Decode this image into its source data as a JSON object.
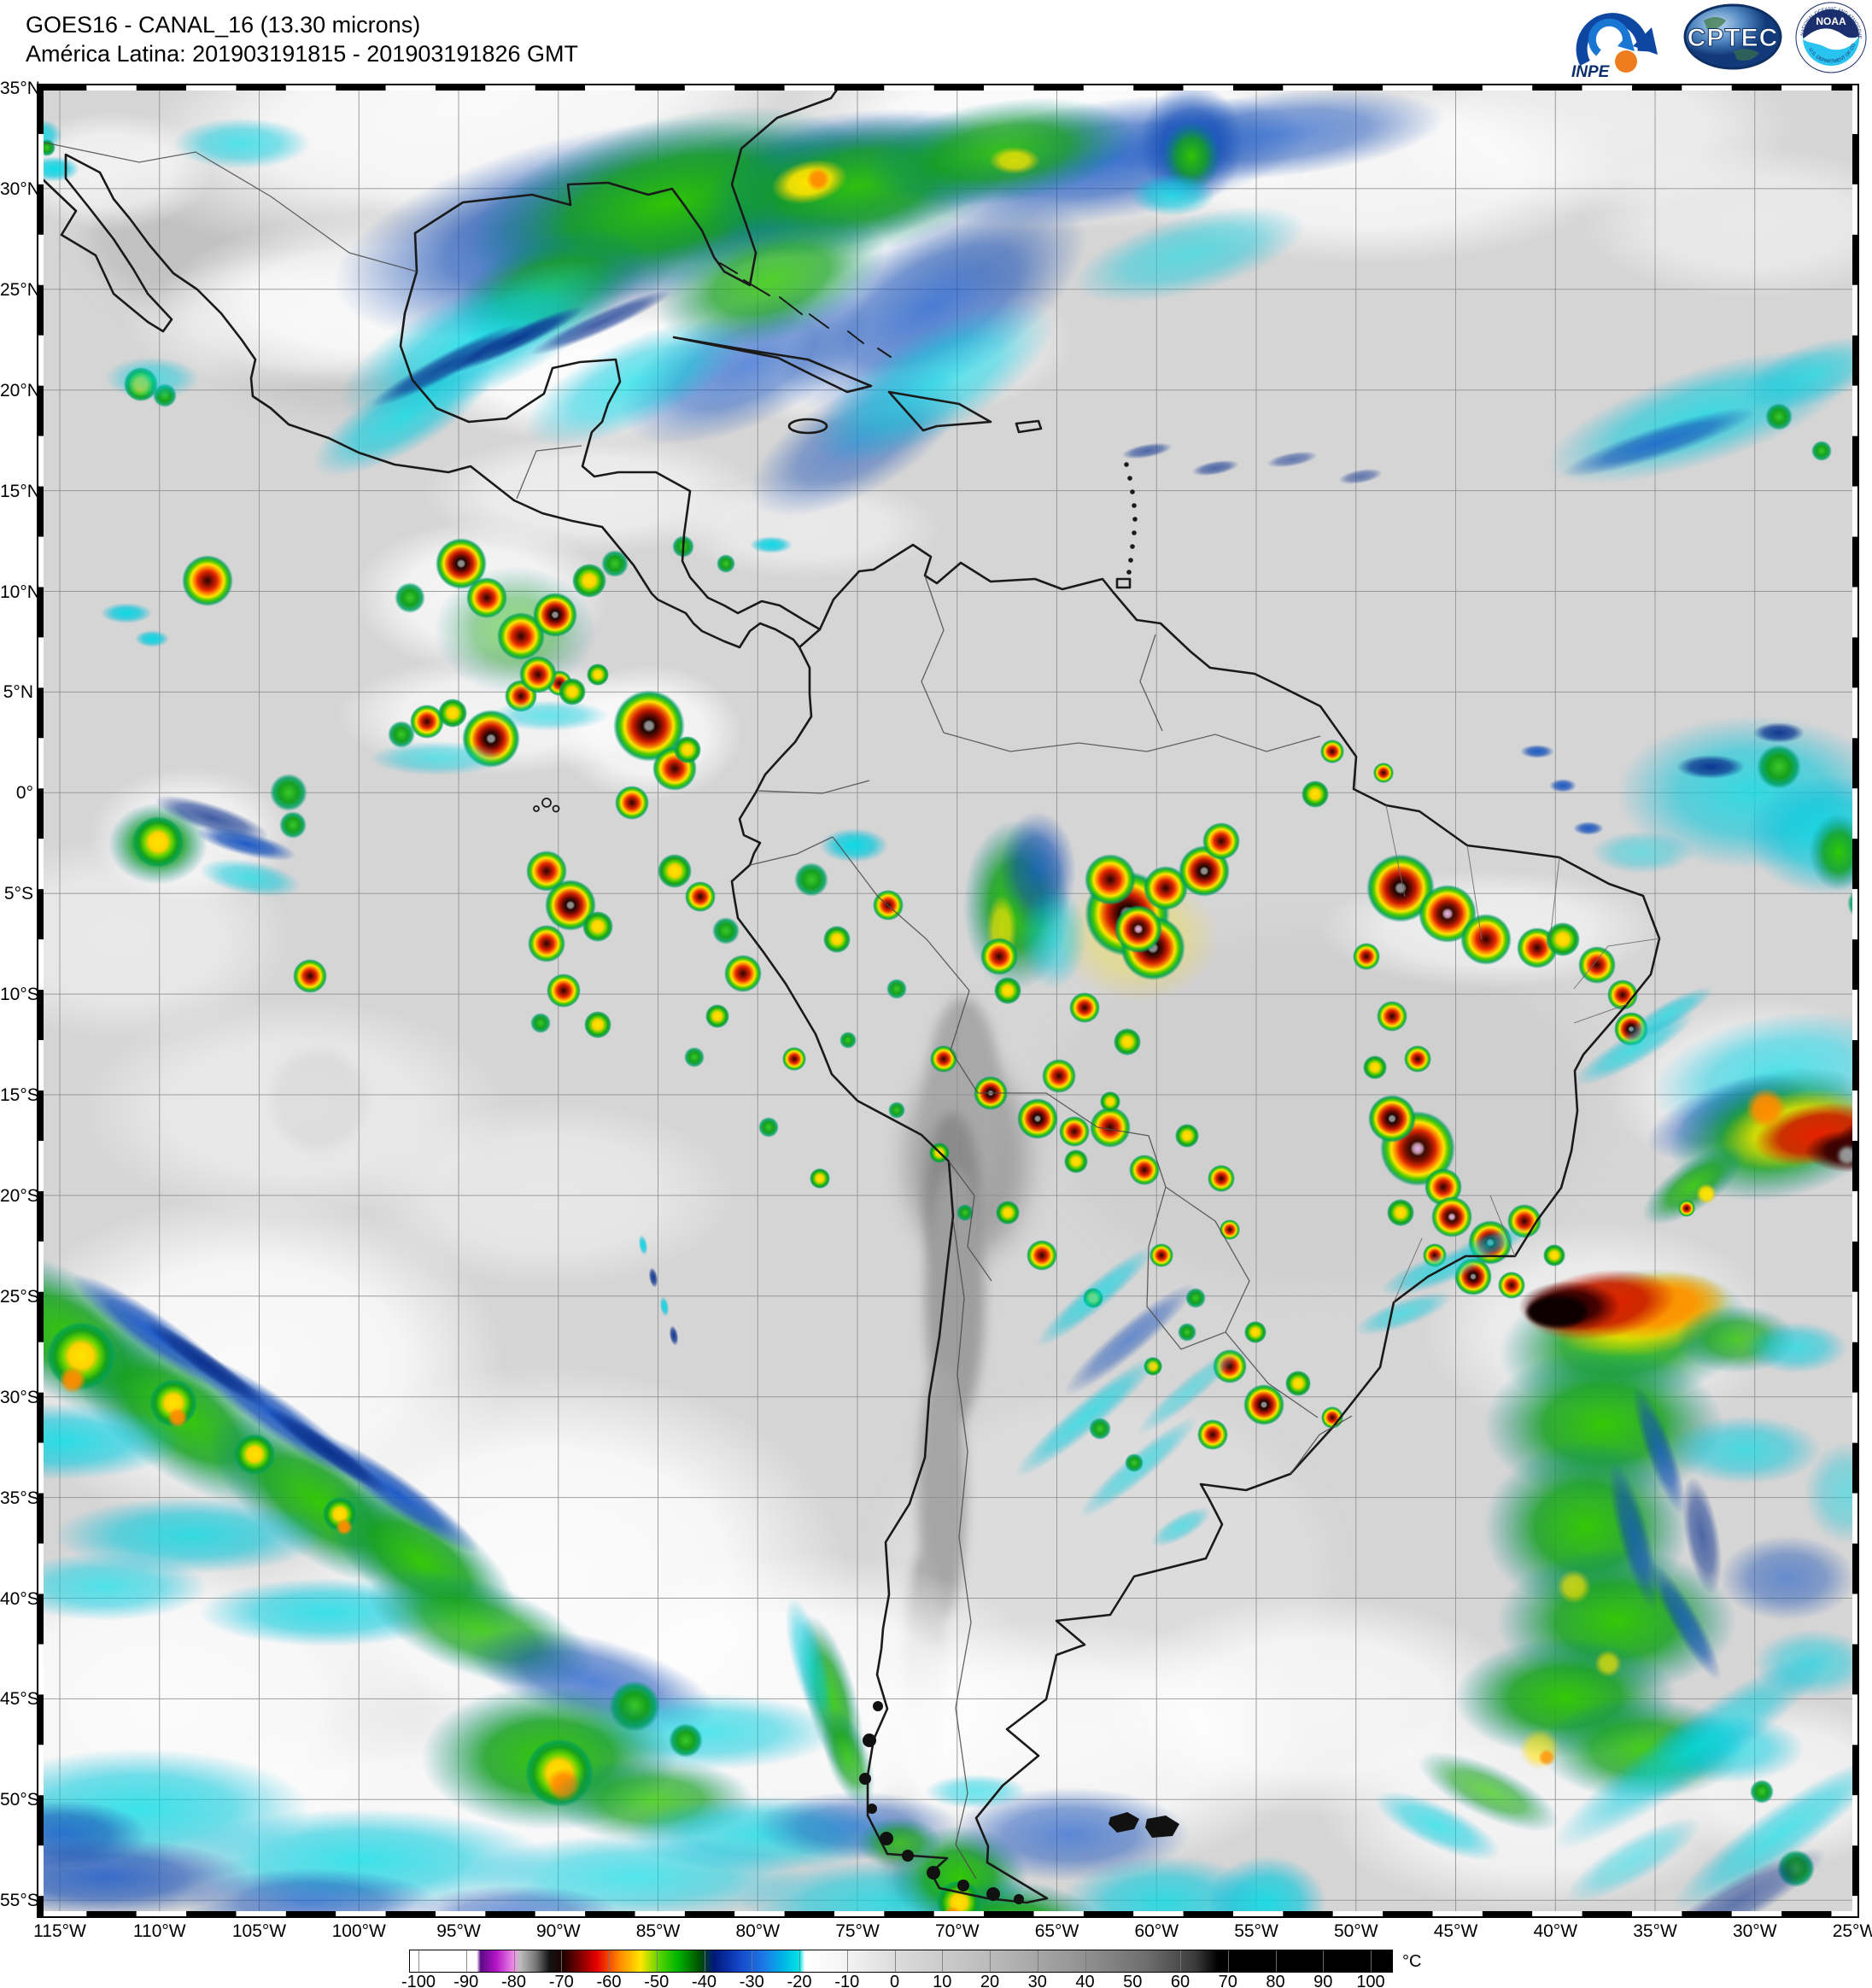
{
  "header": {
    "line1": "GOES16 - CANAL_16 (13.30 microns)",
    "line2": "América Latina: 201903191815 - 201903191826 GMT"
  },
  "logos": {
    "inpe": "INPE",
    "cptec": "CPTEC",
    "noaa": "NOAA",
    "noaa_ring_top": "NATIONAL OCEANIC AND ATMOSPHERIC ADMINISTRATION",
    "noaa_ring_bottom": "U.S. DEPARTMENT OF COMMERCE"
  },
  "map": {
    "lat_labels": [
      "35°N",
      "30°N",
      "25°N",
      "20°N",
      "15°N",
      "10°N",
      "5°N",
      "0°",
      "5°S",
      "10°S",
      "15°S",
      "20°S",
      "25°S",
      "30°S",
      "35°S",
      "40°S",
      "45°S",
      "50°S",
      "55°S"
    ],
    "lon_labels": [
      "115°W",
      "110°W",
      "105°W",
      "100°W",
      "95°W",
      "90°W",
      "85°W",
      "80°W",
      "75°W",
      "70°W",
      "65°W",
      "60°W",
      "55°W",
      "50°W",
      "45°W",
      "40°W",
      "35°W",
      "30°W",
      "25°W"
    ]
  },
  "colorbar": {
    "unit": "°C",
    "ticks": [
      "-100",
      "-90",
      "-80",
      "-70",
      "-60",
      "-50",
      "-40",
      "-30",
      "-20",
      "-10",
      "0",
      "10",
      "20",
      "30",
      "40",
      "50",
      "60",
      "70",
      "80",
      "90",
      "100"
    ],
    "stops": [
      {
        "p": 0,
        "c": "#ffffff"
      },
      {
        "p": 6.8,
        "c": "#ffffff"
      },
      {
        "p": 7.2,
        "c": "#5c0a86"
      },
      {
        "p": 8.8,
        "c": "#b414c8"
      },
      {
        "p": 10.7,
        "c": "#f096e6"
      },
      {
        "p": 11.2,
        "c": "#bebebe"
      },
      {
        "p": 12.8,
        "c": "#787878"
      },
      {
        "p": 14.2,
        "c": "#141414"
      },
      {
        "p": 15.6,
        "c": "#200000"
      },
      {
        "p": 17.2,
        "c": "#780000"
      },
      {
        "p": 19,
        "c": "#e60000"
      },
      {
        "p": 21.4,
        "c": "#ff8c00"
      },
      {
        "p": 23.5,
        "c": "#ffe600"
      },
      {
        "p": 25.5,
        "c": "#50d200"
      },
      {
        "p": 27.3,
        "c": "#00b400"
      },
      {
        "p": 29.5,
        "c": "#005000"
      },
      {
        "p": 31,
        "c": "#00187c"
      },
      {
        "p": 33.5,
        "c": "#1446c8"
      },
      {
        "p": 36,
        "c": "#1e78e6"
      },
      {
        "p": 38,
        "c": "#00b4e6"
      },
      {
        "p": 39.7,
        "c": "#00e6e6"
      },
      {
        "p": 40.2,
        "c": "#ffffff"
      },
      {
        "p": 44,
        "c": "#f5f5f5"
      },
      {
        "p": 49.4,
        "c": "#dcdcdc"
      },
      {
        "p": 58.1,
        "c": "#bebebe"
      },
      {
        "p": 67.8,
        "c": "#969696"
      },
      {
        "p": 75,
        "c": "#6e6e6e"
      },
      {
        "p": 79.9,
        "c": "#3c3c3c"
      },
      {
        "p": 82.3,
        "c": "#000000"
      },
      {
        "p": 100,
        "c": "#000000"
      }
    ]
  }
}
